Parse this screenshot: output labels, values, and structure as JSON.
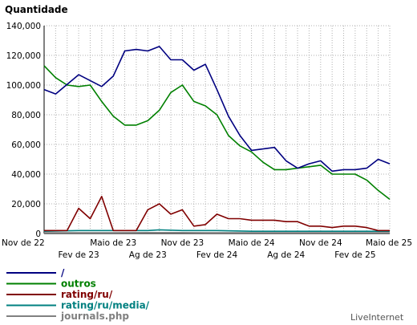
{
  "chart_data": {
    "type": "line",
    "title": "",
    "ylabel": "Quantidade",
    "xlabel": "",
    "ylim": [
      0,
      140000
    ],
    "y_ticks": [
      "0",
      "20,000",
      "40,000",
      "60,000",
      "80,000",
      "100,000",
      "120,000",
      "140,000"
    ],
    "y_tick_values": [
      0,
      20000,
      40000,
      60000,
      80000,
      100000,
      120000,
      140000
    ],
    "x_ticks_upper": [
      "Nov de 22",
      "Maio de 23",
      "Nov de 23",
      "Maio de 24",
      "Nov de 24",
      "Maio de 25"
    ],
    "x_ticks_lower": [
      "Fev de 23",
      "Ag de 23",
      "Fev de 24",
      "Ag de 24",
      "Fev de 25"
    ],
    "x_range_months": [
      0,
      30
    ],
    "grid": true,
    "legend_position": "bottom-left",
    "series": [
      {
        "name": "/",
        "color": "#000080",
        "x": [
          0,
          1,
          3,
          5,
          6,
          7,
          8,
          9,
          10,
          11,
          12,
          13,
          14,
          15,
          16,
          17,
          18,
          19,
          20,
          21,
          22,
          23,
          24,
          25,
          26,
          27,
          28,
          29,
          30
        ],
        "values": [
          97000,
          94000,
          107000,
          99000,
          106000,
          123000,
          124000,
          123000,
          126000,
          117000,
          117000,
          110000,
          114000,
          97000,
          79000,
          66000,
          56000,
          57000,
          58000,
          49000,
          44000,
          47000,
          49000,
          42000,
          43000,
          43000,
          44000,
          50000,
          47000
        ]
      },
      {
        "name": "outros",
        "color": "#008000",
        "x": [
          0,
          1,
          2,
          3,
          4,
          5,
          6,
          7,
          8,
          9,
          10,
          11,
          12,
          13,
          14,
          15,
          16,
          17,
          18,
          19,
          20,
          21,
          22,
          23,
          24,
          25,
          26,
          27,
          28,
          29,
          30
        ],
        "values": [
          113000,
          105000,
          100000,
          99000,
          100000,
          89000,
          79000,
          73000,
          73000,
          76000,
          83000,
          95000,
          100000,
          89000,
          86000,
          80000,
          66000,
          59000,
          55000,
          48000,
          43000,
          43000,
          44000,
          45000,
          46000,
          40000,
          40000,
          40000,
          36000,
          29000,
          23000
        ]
      },
      {
        "name": "rating/ru/",
        "color": "#800000",
        "x": [
          0,
          1,
          2,
          3,
          4,
          5,
          6,
          7,
          8,
          9,
          10,
          11,
          12,
          13,
          14,
          15,
          16,
          17,
          18,
          19,
          20,
          21,
          22,
          23,
          24,
          25,
          26,
          27,
          28,
          29,
          30
        ],
        "values": [
          2000,
          2000,
          2000,
          17000,
          10000,
          25000,
          2000,
          2000,
          2000,
          16000,
          20000,
          13000,
          16000,
          5000,
          6000,
          13000,
          10000,
          10000,
          9000,
          9000,
          9000,
          8000,
          8000,
          5000,
          5000,
          4000,
          5000,
          5000,
          4000,
          2000,
          2000
        ]
      },
      {
        "name": "rating/ru/media/",
        "color": "#008080",
        "x": [
          0,
          3,
          6,
          9,
          10,
          12,
          15,
          18,
          21,
          24,
          27,
          30
        ],
        "values": [
          1500,
          2000,
          2000,
          2000,
          2500,
          2000,
          2000,
          1500,
          1500,
          1500,
          1500,
          1500
        ]
      },
      {
        "name": "journals.php",
        "color": "#808080",
        "x": [
          0,
          3,
          6,
          9,
          12,
          15,
          18,
          21,
          24,
          27,
          30
        ],
        "values": [
          500,
          500,
          500,
          600,
          600,
          500,
          500,
          500,
          500,
          500,
          500
        ]
      }
    ]
  },
  "watermark": "LiveInternet"
}
